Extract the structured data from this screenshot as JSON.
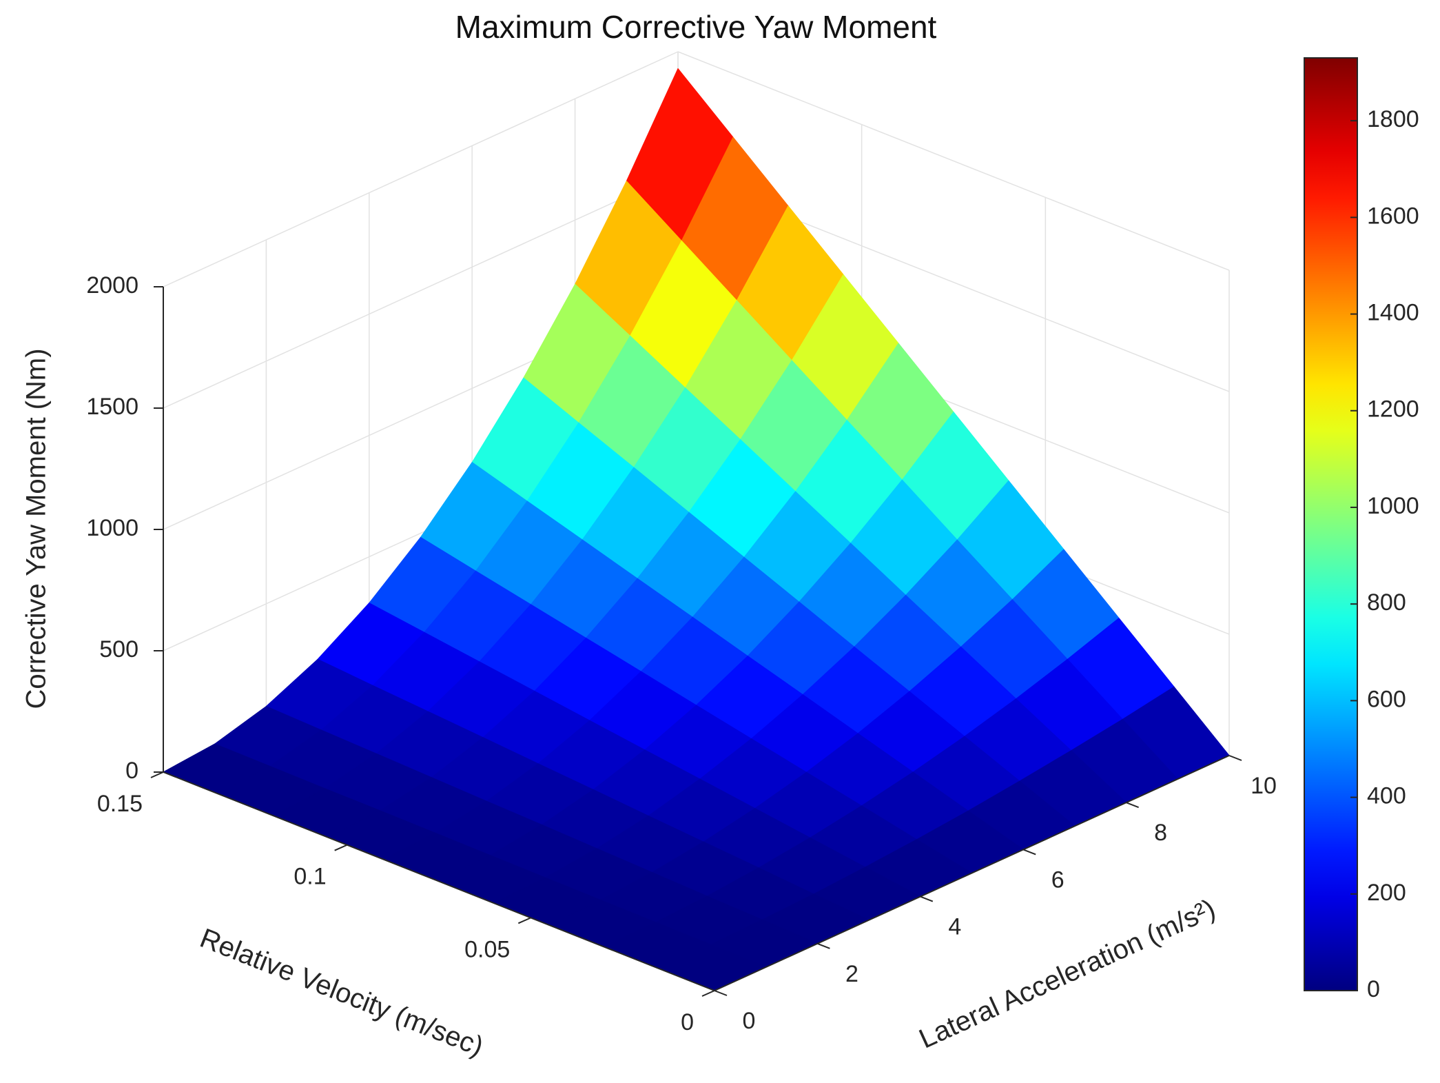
{
  "chart_data": {
    "type": "surface",
    "title": "Maximum Corrective Yaw Moment",
    "xlabel": "Lateral Acceleration (m/s²)",
    "ylabel": "Relative Velocity (m/sec)",
    "zlabel": "Corrective Yaw Moment (Nm)",
    "x": [
      0,
      1,
      2,
      3,
      4,
      5,
      6,
      7,
      8,
      9,
      10
    ],
    "y": [
      0,
      0.015,
      0.03,
      0.045,
      0.06,
      0.075,
      0.09,
      0.105,
      0.12,
      0.135,
      0.15
    ],
    "z": [
      [
        0,
        0,
        0,
        0,
        0,
        0,
        0,
        0,
        0,
        0,
        0
      ],
      [
        0,
        2,
        8,
        17,
        31,
        48,
        69,
        95,
        124,
        156,
        193
      ],
      [
        0,
        4,
        15,
        35,
        62,
        97,
        139,
        189,
        247,
        313,
        386
      ],
      [
        0,
        6,
        23,
        52,
        93,
        145,
        208,
        284,
        371,
        469,
        579
      ],
      [
        0,
        8,
        31,
        69,
        124,
        193,
        278,
        378,
        494,
        625,
        772
      ],
      [
        0,
        10,
        39,
        87,
        154,
        241,
        347,
        473,
        618,
        782,
        965
      ],
      [
        0,
        12,
        46,
        104,
        185,
        290,
        417,
        567,
        741,
        938,
        1158
      ],
      [
        0,
        14,
        54,
        122,
        216,
        338,
        486,
        662,
        865,
        1094,
        1351
      ],
      [
        0,
        15,
        62,
        139,
        247,
        386,
        556,
        757,
        988,
        1251,
        1544
      ],
      [
        0,
        17,
        69,
        156,
        278,
        434,
        625,
        851,
        1112,
        1407,
        1737
      ],
      [
        0,
        19,
        77,
        174,
        309,
        483,
        695,
        946,
        1235,
        1563,
        1930
      ]
    ],
    "xlim": [
      0,
      10
    ],
    "ylim": [
      0,
      0.15
    ],
    "zlim": [
      0,
      2000
    ],
    "xticks": [
      0,
      2,
      4,
      6,
      8,
      10
    ],
    "yticks": [
      0,
      0.05,
      0.1,
      0.15
    ],
    "zticks": [
      0,
      500,
      1000,
      1500,
      2000
    ],
    "grid": true,
    "colormap": "jet",
    "colorbar": {
      "clim": [
        0,
        1930
      ],
      "ticks": [
        0,
        200,
        400,
        600,
        800,
        1000,
        1200,
        1400,
        1600,
        1800
      ]
    }
  }
}
